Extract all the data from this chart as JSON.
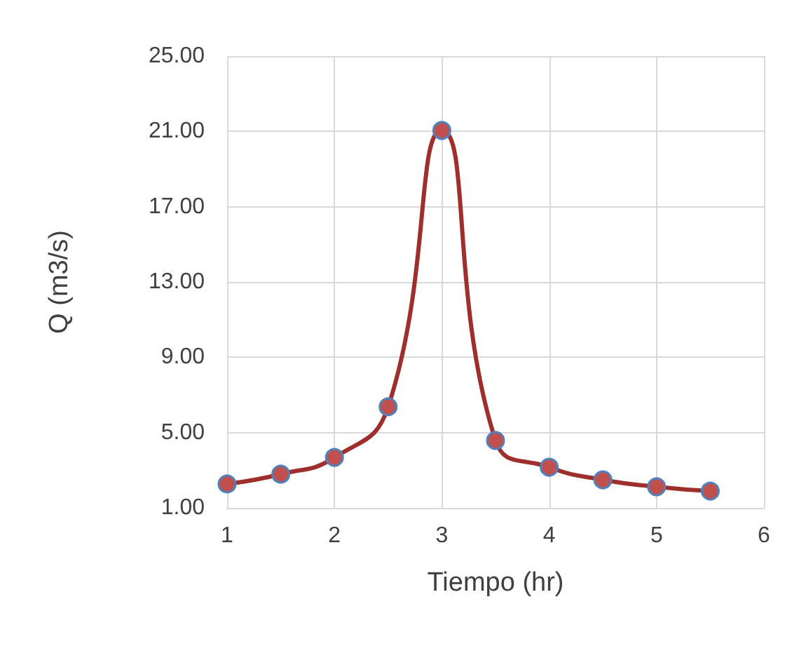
{
  "chart_data": {
    "type": "line",
    "xlabel": "Tiempo (hr)",
    "ylabel": "Q (m3/s)",
    "x": [
      1,
      1.5,
      2,
      2.5,
      3,
      3.5,
      4,
      4.5,
      5,
      5.5
    ],
    "series": [
      {
        "color": "#9e2f2d",
        "values": [
          2.27,
          2.79,
          3.68,
          6.37,
          21.05,
          4.58,
          3.16,
          2.49,
          2.12,
          1.89
        ]
      }
    ],
    "xlim": [
      1,
      6
    ],
    "xticks": [
      1,
      2,
      3,
      4,
      5,
      6
    ],
    "ylim": [
      1,
      25
    ],
    "yticks": [
      {
        "value": 1,
        "label": "1.00"
      },
      {
        "value": 5,
        "label": "5.00"
      },
      {
        "value": 9,
        "label": "9.00"
      },
      {
        "value": 13,
        "label": "13.00"
      },
      {
        "value": 17,
        "label": "17.00"
      },
      {
        "value": 21,
        "label": "21.00"
      },
      {
        "value": 25,
        "label": "25.00"
      }
    ],
    "grid": true,
    "marker": "circle",
    "line_style": "solid"
  }
}
